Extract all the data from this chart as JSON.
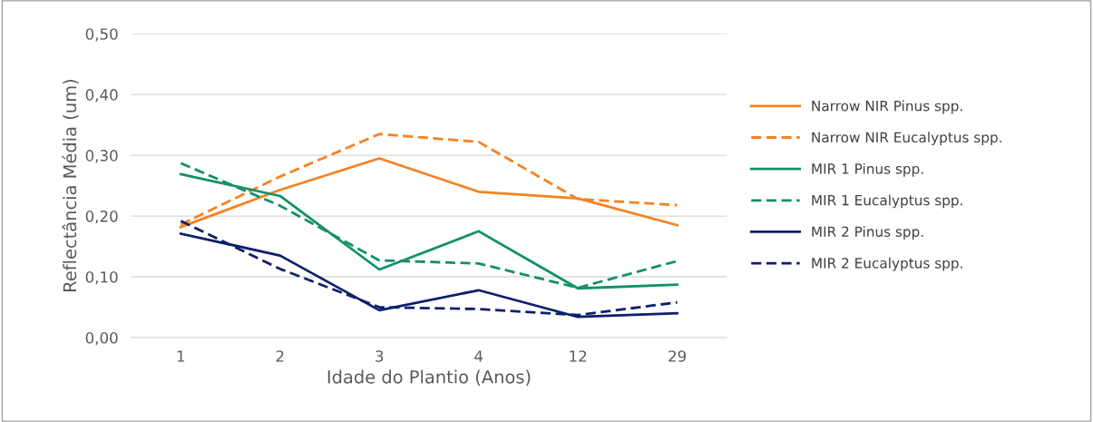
{
  "chart_data": {
    "type": "line",
    "xlabel": "Idade do Plantio (Anos)",
    "ylabel": "Reflectância Média (um)",
    "categories": [
      "1",
      "2",
      "3",
      "4",
      "12",
      "29"
    ],
    "ylim": [
      0,
      0.5
    ],
    "yticks": [
      {
        "value": 0,
        "label": "0,00"
      },
      {
        "value": 0.1,
        "label": "0,10"
      },
      {
        "value": 0.2,
        "label": "0,20"
      },
      {
        "value": 0.3,
        "label": "0,30"
      },
      {
        "value": 0.4,
        "label": "0,40"
      },
      {
        "value": 0.5,
        "label": "0,50"
      }
    ],
    "grid": "y",
    "legend": "right",
    "marker": "none",
    "series": [
      {
        "name": "Narrow NIR Pinus spp.",
        "color": "#f58220",
        "line_style": "solid",
        "values": [
          0.182,
          0.243,
          0.295,
          0.24,
          0.229,
          0.185
        ]
      },
      {
        "name": "Narrow NIR Eucalyptus spp.",
        "color": "#f58220",
        "line_style": "dashed",
        "values": [
          0.186,
          0.265,
          0.335,
          0.322,
          0.228,
          0.218
        ]
      },
      {
        "name": "MIR 1 Pinus spp.",
        "color": "#13906a",
        "line_style": "solid",
        "values": [
          0.269,
          0.233,
          0.112,
          0.175,
          0.081,
          0.087
        ]
      },
      {
        "name": "MIR 1 Eucalyptus spp.",
        "color": "#13906a",
        "line_style": "dashed",
        "values": [
          0.287,
          0.217,
          0.127,
          0.122,
          0.082,
          0.126
        ]
      },
      {
        "name": "MIR 2 Pinus spp.",
        "color": "#0d1f6b",
        "line_style": "solid",
        "values": [
          0.171,
          0.135,
          0.045,
          0.078,
          0.034,
          0.04
        ]
      },
      {
        "name": "MIR 2 Eucalyptus spp.",
        "color": "#0d1f6b",
        "line_style": "dashed",
        "values": [
          0.192,
          0.113,
          0.05,
          0.047,
          0.037,
          0.058
        ]
      }
    ]
  }
}
